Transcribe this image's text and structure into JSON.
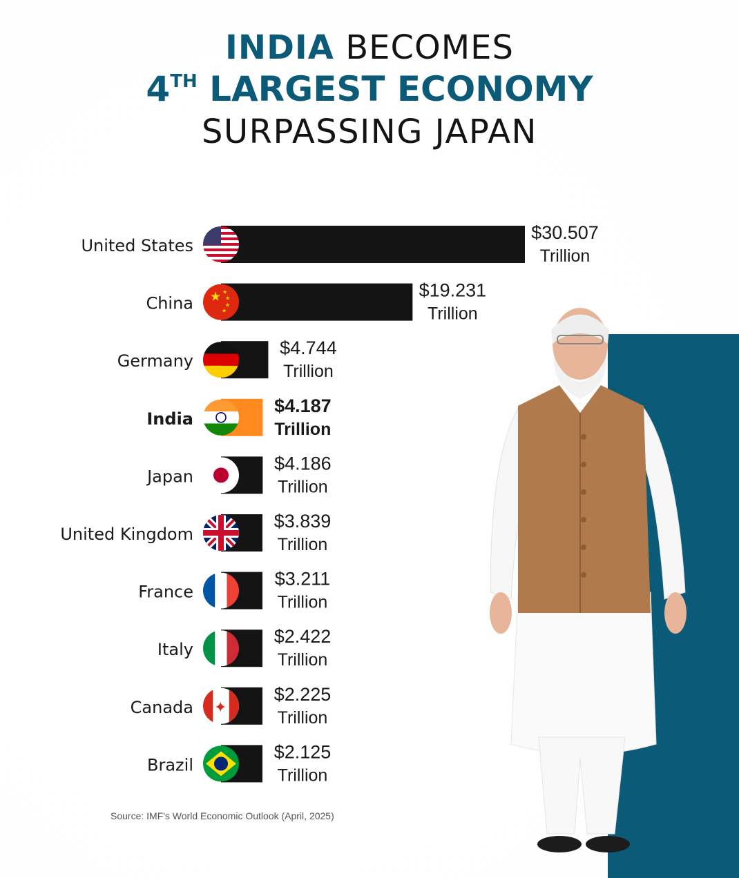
{
  "header": {
    "title_line1_accent": "INDIA",
    "title_line1_rest": "BECOMES",
    "title_line2_num": "4",
    "title_line2_sup": "TH",
    "title_line2_rest": "LARGEST ECONOMY",
    "title_line3": "SURPASSING JAPAN"
  },
  "colors": {
    "accent": "#0b5a78",
    "bar": "#141414",
    "india_bar": "#ff8a1f"
  },
  "chart_data": {
    "type": "bar",
    "orientation": "horizontal",
    "categories": [
      "United States",
      "China",
      "Germany",
      "India",
      "Japan",
      "United Kingdom",
      "France",
      "Italy",
      "Canada",
      "Brazil"
    ],
    "values": [
      30.507,
      19.231,
      4.744,
      4.187,
      4.186,
      3.839,
      3.211,
      2.422,
      2.225,
      2.125
    ],
    "value_labels": [
      "$30.507",
      "$19.231",
      "$4.744",
      "$4.187",
      "$4.186",
      "$3.839",
      "$3.211",
      "$2.422",
      "$2.225",
      "$2.125"
    ],
    "unit_label": "Trillion",
    "flags": [
      "us-flag-icon",
      "china-flag-icon",
      "germany-flag-icon",
      "india-flag-icon",
      "japan-flag-icon",
      "uk-flag-icon",
      "france-flag-icon",
      "italy-flag-icon",
      "canada-flag-icon",
      "brazil-flag-icon"
    ],
    "highlight": "India",
    "title": "",
    "xlabel": "",
    "ylabel": ""
  },
  "source": "Source: IMF's World Economic Outlook (April, 2025)"
}
